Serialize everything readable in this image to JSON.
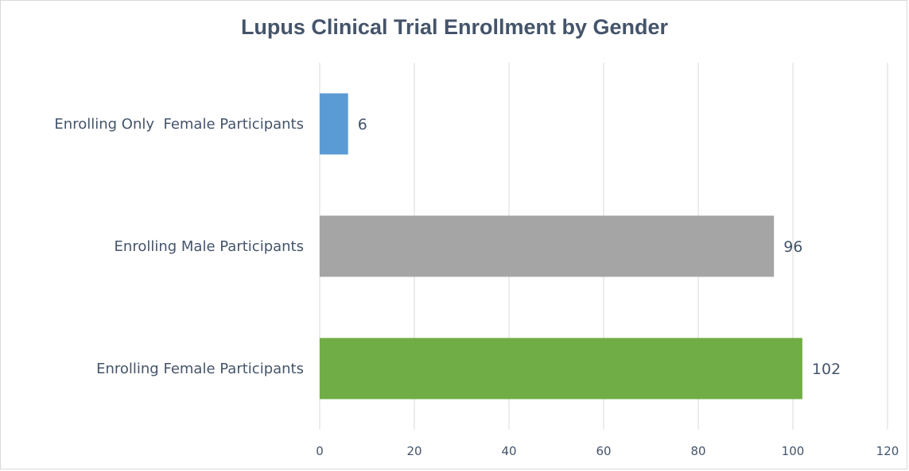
{
  "chart_data": {
    "type": "bar",
    "orientation": "horizontal",
    "title": "Lupus Clinical Trial Enrollment by Gender",
    "xlabel": "",
    "ylabel": "",
    "categories": [
      "Enrolling Only  Female Participants",
      "Enrolling Male Participants",
      "Enrolling Female Participants"
    ],
    "values": [
      6,
      96,
      102
    ],
    "data_labels": [
      "6",
      "96",
      "102"
    ],
    "colors": [
      "#5b9bd5",
      "#a5a5a5",
      "#70ad47"
    ],
    "xlim": [
      0,
      120
    ],
    "ticks": [
      0,
      20,
      40,
      60,
      80,
      100,
      120
    ],
    "tick_labels": [
      "0",
      "20",
      "40",
      "60",
      "80",
      "100",
      "120"
    ],
    "grid": true,
    "legend": "none"
  }
}
